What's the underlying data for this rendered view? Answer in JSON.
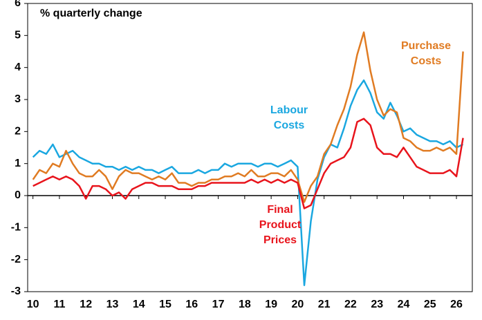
{
  "chart_data": {
    "type": "line",
    "subtitle": "% quarterly change",
    "x": [
      10,
      10.25,
      10.5,
      10.75,
      11,
      11.25,
      11.5,
      11.75,
      12,
      12.25,
      12.5,
      12.75,
      13,
      13.25,
      13.5,
      13.75,
      14,
      14.25,
      14.5,
      14.75,
      15,
      15.25,
      15.5,
      15.75,
      16,
      16.25,
      16.5,
      16.75,
      17,
      17.25,
      17.5,
      17.75,
      18,
      18.25,
      18.5,
      18.75,
      19,
      19.25,
      19.5,
      19.75,
      20,
      20.25,
      20.5,
      20.75,
      21,
      21.25,
      21.5,
      21.75,
      22,
      22.25,
      22.5,
      22.75,
      23,
      23.25,
      23.5,
      23.75,
      24,
      24.25,
      24.5,
      24.75,
      25,
      25.25,
      25.5,
      25.75,
      26,
      26.25
    ],
    "series": [
      {
        "name": [
          "Labour",
          "Costs"
        ],
        "color": "#1aa7e0",
        "values": [
          1.2,
          1.4,
          1.3,
          1.6,
          1.2,
          1.3,
          1.4,
          1.2,
          1.1,
          1.0,
          1.0,
          0.9,
          0.9,
          0.8,
          0.9,
          0.8,
          0.9,
          0.8,
          0.8,
          0.7,
          0.8,
          0.9,
          0.7,
          0.7,
          0.7,
          0.8,
          0.7,
          0.8,
          0.8,
          1.0,
          0.9,
          1.0,
          1.0,
          1.0,
          0.9,
          1.0,
          1.0,
          0.9,
          1.0,
          1.1,
          0.9,
          -2.8,
          -0.8,
          0.5,
          1.2,
          1.6,
          1.5,
          2.1,
          2.8,
          3.3,
          3.6,
          3.2,
          2.6,
          2.4,
          2.9,
          2.5,
          2.0,
          2.1,
          1.9,
          1.8,
          1.7,
          1.7,
          1.6,
          1.7,
          1.5,
          1.6
        ]
      },
      {
        "name": [
          "Purchase",
          "Costs"
        ],
        "color": "#e07b22",
        "values": [
          0.5,
          0.8,
          0.7,
          1.0,
          0.9,
          1.4,
          1.0,
          0.7,
          0.6,
          0.6,
          0.8,
          0.6,
          0.2,
          0.6,
          0.8,
          0.7,
          0.7,
          0.6,
          0.5,
          0.6,
          0.5,
          0.7,
          0.4,
          0.4,
          0.3,
          0.4,
          0.4,
          0.5,
          0.5,
          0.6,
          0.6,
          0.7,
          0.6,
          0.8,
          0.6,
          0.6,
          0.7,
          0.7,
          0.6,
          0.8,
          0.5,
          -0.2,
          0.3,
          0.6,
          1.3,
          1.6,
          2.2,
          2.7,
          3.4,
          4.4,
          5.1,
          3.9,
          3.0,
          2.5,
          2.7,
          2.6,
          1.8,
          1.7,
          1.5,
          1.4,
          1.4,
          1.5,
          1.4,
          1.5,
          1.3,
          4.5
        ]
      },
      {
        "name": [
          "Final",
          "Product",
          "Prices"
        ],
        "color": "#e8141c",
        "values": [
          0.3,
          0.4,
          0.5,
          0.6,
          0.5,
          0.6,
          0.5,
          0.3,
          -0.1,
          0.3,
          0.3,
          0.2,
          0.0,
          0.1,
          -0.1,
          0.2,
          0.3,
          0.4,
          0.4,
          0.3,
          0.3,
          0.3,
          0.2,
          0.2,
          0.2,
          0.3,
          0.3,
          0.4,
          0.4,
          0.4,
          0.4,
          0.4,
          0.4,
          0.5,
          0.4,
          0.5,
          0.4,
          0.5,
          0.4,
          0.5,
          0.4,
          -0.4,
          -0.3,
          0.2,
          0.7,
          1.0,
          1.1,
          1.2,
          1.5,
          2.3,
          2.4,
          2.2,
          1.5,
          1.3,
          1.3,
          1.2,
          1.5,
          1.2,
          0.9,
          0.8,
          0.7,
          0.7,
          0.7,
          0.8,
          0.6,
          1.8
        ]
      }
    ],
    "xlim": [
      9.8,
      26.6
    ],
    "xticks": [
      10,
      11,
      12,
      13,
      14,
      15,
      16,
      17,
      18,
      19,
      20,
      21,
      22,
      23,
      24,
      25,
      26
    ],
    "ylim": [
      -3,
      6
    ],
    "yticks": [
      6,
      5,
      4,
      3,
      2,
      1,
      0,
      -1,
      -2,
      -3
    ]
  }
}
